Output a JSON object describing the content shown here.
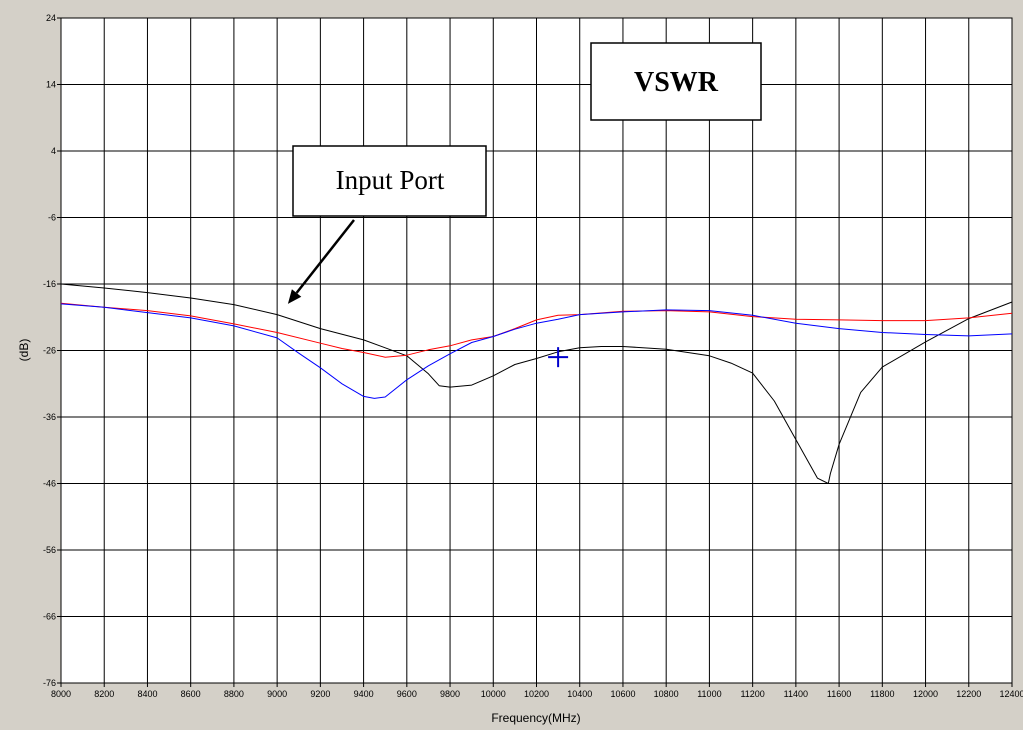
{
  "chart_data": {
    "type": "line",
    "title": "",
    "xlabel": "Frequency(MHz)",
    "ylabel": "(dB)",
    "xlim": [
      8000,
      12400
    ],
    "ylim": [
      -76,
      24
    ],
    "x_ticks": [
      8000,
      8200,
      8400,
      8600,
      8800,
      9000,
      9200,
      9400,
      9600,
      9800,
      10000,
      10200,
      10400,
      10600,
      10800,
      11000,
      11200,
      11400,
      11600,
      11800,
      12000,
      12200,
      12400
    ],
    "x_tick_labels": [
      "8000",
      "8200",
      "8400",
      "8600",
      "8800",
      "9000",
      "9200",
      "9400",
      "9600",
      "9800",
      "10000",
      "10200",
      "10400",
      "10600",
      "10800",
      "11000",
      "11200",
      "11400",
      "11600",
      "11800",
      "12000",
      "12200",
      "12400"
    ],
    "y_ticks": [
      24,
      14,
      4,
      -6,
      -16,
      -26,
      -36,
      -46,
      -56,
      -66,
      -76
    ],
    "y_tick_labels": [
      "24",
      "14",
      "4",
      "-6",
      "-16",
      "-26",
      "-36",
      "-46",
      "-56",
      "-66",
      "-76"
    ],
    "grid": true,
    "annotations": [
      {
        "text": "VSWR",
        "style": "bold-box"
      },
      {
        "text": "Input Port",
        "style": "box-with-arrow",
        "arrow_to": [
          9050,
          -19
        ]
      }
    ],
    "marker": {
      "x": 10300,
      "y": -27,
      "color": "#0000cc"
    },
    "series": [
      {
        "color": "#000000",
        "x": [
          8000,
          8200,
          8400,
          8600,
          8800,
          9000,
          9200,
          9400,
          9500,
          9600,
          9700,
          9750,
          9800,
          9900,
          10000,
          10100,
          10200,
          10300,
          10400,
          10500,
          10600,
          10800,
          11000,
          11100,
          11200,
          11300,
          11400,
          11500,
          11550,
          11560,
          11600,
          11700,
          11800,
          12000,
          12200,
          12400
        ],
        "y": [
          -16,
          -16.6,
          -17.3,
          -18.1,
          -19.1,
          -20.6,
          -22.7,
          -24.4,
          -25.6,
          -26.8,
          -29.5,
          -31.3,
          -31.5,
          -31.2,
          -29.8,
          -28.1,
          -27.2,
          -26.2,
          -25.6,
          -25.4,
          -25.4,
          -25.8,
          -26.8,
          -27.9,
          -29.4,
          -33.6,
          -39.4,
          -45.2,
          -46.0,
          -44.5,
          -40.1,
          -32.3,
          -28.5,
          -24.7,
          -21.2,
          -18.7
        ]
      },
      {
        "color": "#ff0000",
        "x": [
          8000,
          8200,
          8400,
          8600,
          8800,
          9000,
          9200,
          9300,
          9400,
          9500,
          9600,
          9700,
          9800,
          9900,
          10000,
          10100,
          10200,
          10300,
          10400,
          10600,
          10800,
          11000,
          11200,
          11400,
          11600,
          11800,
          12000,
          12200,
          12400
        ],
        "y": [
          -18.9,
          -19.5,
          -20.0,
          -20.8,
          -22.0,
          -23.3,
          -24.9,
          -25.7,
          -26.3,
          -27.0,
          -26.7,
          -25.9,
          -25.3,
          -24.4,
          -23.9,
          -22.7,
          -21.4,
          -20.7,
          -20.6,
          -20.1,
          -20.0,
          -20.2,
          -20.9,
          -21.3,
          -21.4,
          -21.5,
          -21.5,
          -21.1,
          -20.4
        ]
      },
      {
        "color": "#0000ff",
        "x": [
          8000,
          8200,
          8400,
          8600,
          8800,
          9000,
          9100,
          9200,
          9300,
          9400,
          9450,
          9500,
          9600,
          9700,
          9800,
          9900,
          10000,
          10100,
          10200,
          10300,
          10400,
          10600,
          10800,
          11000,
          11200,
          11400,
          11600,
          11800,
          12000,
          12200,
          12400
        ],
        "y": [
          -19.0,
          -19.5,
          -20.3,
          -21.1,
          -22.3,
          -24.1,
          -26.4,
          -28.6,
          -31.0,
          -32.9,
          -33.2,
          -33.0,
          -30.4,
          -28.3,
          -26.5,
          -24.8,
          -23.9,
          -22.8,
          -21.9,
          -21.3,
          -20.6,
          -20.2,
          -19.9,
          -20.0,
          -20.7,
          -21.9,
          -22.7,
          -23.3,
          -23.6,
          -23.8,
          -23.5
        ]
      }
    ]
  }
}
